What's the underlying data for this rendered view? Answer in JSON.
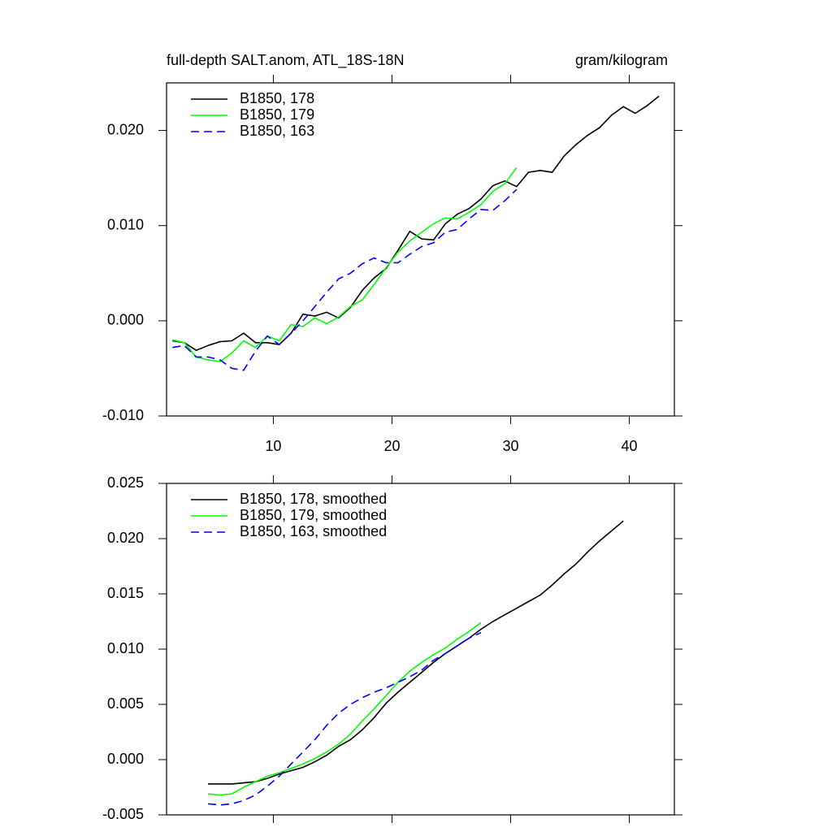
{
  "chart_data": [
    {
      "type": "line",
      "title": "full-depth SALT.anom, ATL_18S-18N",
      "units_label": "gram/kilogram",
      "xlim": [
        1,
        43.8
      ],
      "xticks": [
        10,
        20,
        30,
        40
      ],
      "xtick_labels_shown": true,
      "ylim": [
        -0.01,
        0.025
      ],
      "yticks": [
        {
          "value": -0.01,
          "label": "-0.010"
        },
        {
          "value": 0,
          "label": "0.000"
        },
        {
          "value": 0.01,
          "label": "0.010"
        },
        {
          "value": 0.02,
          "label": "0.020"
        }
      ],
      "legend": "top-left",
      "series": [
        {
          "name": "B1850, 178",
          "color": "#000000",
          "line_style": "solid",
          "x": [
            1.5,
            2.5,
            3.5,
            4.5,
            5.5,
            6.5,
            7.5,
            8.5,
            9.5,
            10.5,
            11.5,
            12.5,
            13.5,
            14.5,
            15.5,
            16.5,
            17.5,
            18.5,
            19.5,
            20.5,
            21.5,
            22.5,
            23.5,
            24.5,
            25.5,
            26.5,
            27.5,
            28.5,
            29.5,
            30.5,
            31.5,
            32.5,
            33.5,
            34.5,
            35.5,
            36.5,
            37.5,
            38.5,
            39.5,
            40.5,
            41.5,
            42.5
          ],
          "values": [
            -0.0021,
            -0.0023,
            -0.0031,
            -0.0026,
            -0.0022,
            -0.0021,
            -0.0013,
            -0.0023,
            -0.0023,
            -0.0025,
            -0.0013,
            0.0007,
            0.0005,
            0.0009,
            0.0003,
            0.0014,
            0.0032,
            0.0045,
            0.0055,
            0.0074,
            0.0094,
            0.0086,
            0.0085,
            0.0102,
            0.0112,
            0.0118,
            0.0128,
            0.0142,
            0.0147,
            0.0141,
            0.0156,
            0.0158,
            0.0156,
            0.0173,
            0.0185,
            0.0195,
            0.0203,
            0.0216,
            0.0225,
            0.0218,
            0.0226,
            0.0236
          ]
        },
        {
          "name": "B1850, 179",
          "color": "#00ff00",
          "line_style": "solid",
          "x": [
            1.5,
            2.5,
            3.5,
            4.5,
            5.5,
            6.5,
            7.5,
            8.5,
            9.5,
            10.5,
            11.5,
            12.5,
            13.5,
            14.5,
            15.5,
            16.5,
            17.5,
            18.5,
            19.5,
            20.5,
            21.5,
            22.5,
            23.5,
            24.5,
            25.5,
            26.5,
            27.5,
            28.5,
            29.5,
            30.5
          ],
          "values": [
            -0.002,
            -0.0023,
            -0.0038,
            -0.0041,
            -0.0043,
            -0.0034,
            -0.0021,
            -0.0028,
            -0.0016,
            -0.0021,
            -0.0004,
            -0.0006,
            0.0003,
            -0.0003,
            0.0004,
            0.0015,
            0.0022,
            0.0038,
            0.0056,
            0.0072,
            0.0084,
            0.0093,
            0.0102,
            0.0108,
            0.0107,
            0.0114,
            0.0122,
            0.0136,
            0.0144,
            0.0161
          ]
        },
        {
          "name": "B1850, 163",
          "color": "#0000ff",
          "line_style": "dashed",
          "x": [
            1.5,
            2.5,
            3.5,
            4.5,
            5.5,
            6.5,
            7.5,
            8.5,
            9.5,
            10.5,
            11.5,
            12.5,
            13.5,
            14.5,
            15.5,
            16.5,
            17.5,
            18.5,
            19.5,
            20.5,
            21.5,
            22.5,
            23.5,
            24.5,
            25.5,
            26.5,
            27.5,
            28.5,
            29.5,
            30.5
          ],
          "values": [
            -0.0028,
            -0.0026,
            -0.0038,
            -0.0038,
            -0.0041,
            -0.005,
            -0.0052,
            -0.0032,
            -0.0016,
            -0.0025,
            -0.0013,
            0,
            0.0015,
            0.003,
            0.0044,
            0.005,
            0.006,
            0.0066,
            0.0061,
            0.0061,
            0.007,
            0.0078,
            0.0082,
            0.0093,
            0.0096,
            0.0107,
            0.0117,
            0.0116,
            0.0126,
            0.0138
          ]
        }
      ]
    },
    {
      "type": "line",
      "xlim": [
        1,
        43.8
      ],
      "xticks": [
        10,
        20,
        30,
        40
      ],
      "xtick_labels_shown": false,
      "ylim": [
        -0.005,
        0.025
      ],
      "yticks": [
        {
          "value": -0.005,
          "label": "-0.005"
        },
        {
          "value": 0,
          "label": "0.000"
        },
        {
          "value": 0.005,
          "label": "0.005"
        },
        {
          "value": 0.01,
          "label": "0.010"
        },
        {
          "value": 0.015,
          "label": "0.015"
        },
        {
          "value": 0.02,
          "label": "0.020"
        },
        {
          "value": 0.025,
          "label": "0.025"
        }
      ],
      "legend": "top-left",
      "series": [
        {
          "name": "B1850, 178, smoothed",
          "color": "#000000",
          "line_style": "solid",
          "x": [
            4.5,
            5.5,
            6.5,
            7.5,
            8.5,
            9.5,
            10.5,
            11.5,
            12.5,
            13.5,
            14.5,
            15.5,
            16.5,
            17.5,
            18.5,
            19.5,
            20.5,
            21.5,
            22.5,
            23.5,
            24.5,
            25.5,
            26.5,
            27.5,
            28.5,
            29.5,
            30.5,
            31.5,
            32.5,
            33.5,
            34.5,
            35.5,
            36.5,
            37.5,
            38.5,
            39.5
          ],
          "values": [
            -0.0022,
            -0.0022,
            -0.0022,
            -0.0021,
            -0.002,
            -0.0017,
            -0.0013,
            -0.001,
            -0.0007,
            -0.0002,
            0.0004,
            0.0012,
            0.0018,
            0.0027,
            0.0038,
            0.0051,
            0.0061,
            0.007,
            0.0079,
            0.0088,
            0.0096,
            0.0103,
            0.011,
            0.0118,
            0.0125,
            0.0131,
            0.0137,
            0.0143,
            0.0149,
            0.0158,
            0.0168,
            0.0177,
            0.0188,
            0.0198,
            0.0207,
            0.0216
          ]
        },
        {
          "name": "B1850, 179, smoothed",
          "color": "#00ff00",
          "line_style": "solid",
          "x": [
            4.5,
            5.5,
            6.5,
            7.5,
            8.5,
            9.5,
            10.5,
            11.5,
            12.5,
            13.5,
            14.5,
            15.5,
            16.5,
            17.5,
            18.5,
            19.5,
            20.5,
            21.5,
            22.5,
            23.5,
            24.5,
            25.5,
            26.5,
            27.5
          ],
          "values": [
            -0.0031,
            -0.0032,
            -0.0031,
            -0.0025,
            -0.002,
            -0.0015,
            -0.0012,
            -0.0008,
            -0.0004,
            0.0001,
            0.0007,
            0.0014,
            0.0023,
            0.0035,
            0.0046,
            0.0058,
            0.007,
            0.008,
            0.0088,
            0.0095,
            0.0101,
            0.0109,
            0.0116,
            0.0124
          ]
        },
        {
          "name": "B1850, 163, smoothed",
          "color": "#0000ff",
          "line_style": "dashed",
          "x": [
            4.5,
            5.5,
            6.5,
            7.5,
            8.5,
            9.5,
            10.5,
            11.5,
            12.5,
            13.5,
            14.5,
            15.5,
            16.5,
            17.5,
            18.5,
            19.5,
            20.5,
            21.5,
            22.5,
            23.5,
            24.5,
            25.5,
            26.5,
            27.5
          ],
          "values": [
            -0.004,
            -0.0041,
            -0.004,
            -0.0037,
            -0.0032,
            -0.0024,
            -0.0015,
            -0.0004,
            0.0007,
            0.0018,
            0.0031,
            0.0042,
            0.005,
            0.0056,
            0.0061,
            0.0065,
            0.007,
            0.0075,
            0.0081,
            0.009,
            0.0096,
            0.0103,
            0.011,
            0.0115
          ]
        }
      ]
    }
  ]
}
